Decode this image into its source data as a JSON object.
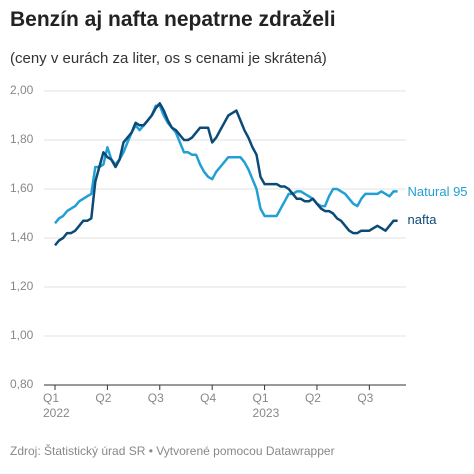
{
  "title": "Benzín aj nafta nepatrne zdraželi",
  "subtitle": "(ceny v eurách za liter, os s cenami je skrátená)",
  "footer": "Zdroj: Štatistický úrad SR • Vytvorené pomocou Datawrapper",
  "chart_data": {
    "type": "line",
    "categories": [
      "Q1",
      null,
      null,
      null,
      null,
      null,
      null,
      null,
      null,
      null,
      null,
      null,
      null,
      "Q2",
      null,
      null,
      null,
      null,
      null,
      null,
      null,
      null,
      null,
      null,
      null,
      null,
      "Q3",
      null,
      null,
      null,
      null,
      null,
      null,
      null,
      null,
      null,
      null,
      null,
      null,
      "Q4",
      null,
      null,
      null,
      null,
      null,
      null,
      null,
      null,
      null,
      null,
      null,
      null,
      "Q1",
      null,
      null,
      null,
      null,
      null,
      null,
      null,
      null,
      null,
      null,
      null,
      null,
      "Q2",
      null,
      null,
      null,
      null,
      null,
      null,
      null,
      null,
      null,
      null,
      null,
      null,
      "Q3",
      null,
      null,
      null,
      null,
      null,
      null,
      null
    ],
    "years": [
      "2022",
      null,
      null,
      null,
      null,
      null,
      null,
      null,
      null,
      null,
      null,
      null,
      null,
      null,
      null,
      null,
      null,
      null,
      null,
      null,
      null,
      null,
      null,
      null,
      null,
      null,
      null,
      null,
      null,
      null,
      null,
      null,
      null,
      null,
      null,
      null,
      null,
      null,
      null,
      null,
      null,
      null,
      null,
      null,
      null,
      null,
      null,
      null,
      null,
      null,
      null,
      null,
      "2023",
      null,
      null,
      null,
      null,
      null,
      null,
      null,
      null,
      null,
      null,
      null,
      null,
      null,
      null,
      null,
      null,
      null,
      null,
      null,
      null,
      null,
      null,
      null,
      null,
      null,
      null,
      null,
      null,
      null,
      null,
      null,
      null,
      null
    ],
    "series": [
      {
        "name": "Natural 95",
        "color": "#22a0d3",
        "values": [
          1.46,
          1.48,
          1.49,
          1.51,
          1.52,
          1.53,
          1.55,
          1.56,
          1.57,
          1.58,
          1.69,
          1.69,
          1.7,
          1.77,
          1.72,
          1.7,
          1.72,
          1.75,
          1.79,
          1.83,
          1.86,
          1.84,
          1.86,
          1.88,
          1.9,
          1.94,
          1.94,
          1.9,
          1.87,
          1.85,
          1.83,
          1.79,
          1.75,
          1.75,
          1.74,
          1.74,
          1.7,
          1.67,
          1.65,
          1.64,
          1.67,
          1.69,
          1.71,
          1.73,
          1.73,
          1.73,
          1.73,
          1.71,
          1.68,
          1.64,
          1.6,
          1.52,
          1.49,
          1.49,
          1.49,
          1.49,
          1.52,
          1.55,
          1.58,
          1.58,
          1.59,
          1.59,
          1.58,
          1.57,
          1.56,
          1.54,
          1.53,
          1.53,
          1.57,
          1.6,
          1.6,
          1.59,
          1.58,
          1.56,
          1.54,
          1.53,
          1.56,
          1.58,
          1.58,
          1.58,
          1.58,
          1.59,
          1.58,
          1.57,
          1.59,
          1.59
        ]
      },
      {
        "name": "nafta",
        "color": "#0c4a78",
        "values": [
          1.37,
          1.39,
          1.4,
          1.42,
          1.42,
          1.43,
          1.45,
          1.47,
          1.47,
          1.48,
          1.63,
          1.69,
          1.75,
          1.73,
          1.72,
          1.69,
          1.72,
          1.79,
          1.81,
          1.83,
          1.87,
          1.86,
          1.86,
          1.88,
          1.9,
          1.93,
          1.95,
          1.92,
          1.88,
          1.85,
          1.84,
          1.82,
          1.8,
          1.8,
          1.81,
          1.83,
          1.85,
          1.85,
          1.85,
          1.79,
          1.81,
          1.84,
          1.87,
          1.9,
          1.91,
          1.92,
          1.88,
          1.84,
          1.81,
          1.77,
          1.74,
          1.65,
          1.62,
          1.62,
          1.62,
          1.62,
          1.61,
          1.61,
          1.6,
          1.58,
          1.56,
          1.56,
          1.55,
          1.55,
          1.56,
          1.54,
          1.52,
          1.51,
          1.51,
          1.5,
          1.48,
          1.47,
          1.45,
          1.43,
          1.42,
          1.42,
          1.43,
          1.43,
          1.43,
          1.44,
          1.45,
          1.44,
          1.43,
          1.45,
          1.47,
          1.47
        ]
      }
    ],
    "ylim": [
      0.8,
      2.0
    ],
    "yticks": [
      {
        "value": 0.8,
        "label": "0,80"
      },
      {
        "value": 1.0,
        "label": "1,00"
      },
      {
        "value": 1.2,
        "label": "1,20"
      },
      {
        "value": 1.4,
        "label": "1,40"
      },
      {
        "value": 1.6,
        "label": "1,60"
      },
      {
        "value": 1.8,
        "label": "1,80"
      },
      {
        "value": 2.0,
        "label": "2,00"
      }
    ],
    "grid": true
  }
}
